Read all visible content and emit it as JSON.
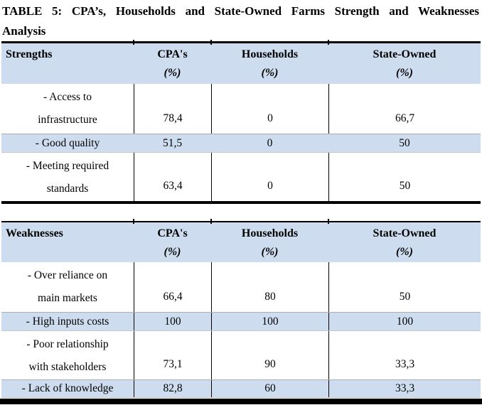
{
  "title": {
    "line1": "TABLE 5: CPA’s, Households and State-Owned Farms Strength and Weaknesses",
    "line2": "Analysis"
  },
  "colors": {
    "band_blue": "#cdddef",
    "grid_gray": "#adadad",
    "rule_black": "#000000"
  },
  "tables": [
    {
      "name": "Strengths",
      "columns": [
        "Strengths",
        "CPA's",
        "Households",
        "State-Owned"
      ],
      "unit": "(%)",
      "rows": [
        {
          "label_lines": [
            "- Access to",
            "infrastructure"
          ],
          "values": [
            "78,4",
            "0",
            "66,7"
          ],
          "highlight": false,
          "col_borders": true
        },
        {
          "label_lines": [
            "- Good quality"
          ],
          "values": [
            "51,5",
            "0",
            "50"
          ],
          "highlight": true,
          "col_borders": false
        },
        {
          "label_lines": [
            "- Meeting required",
            "standards"
          ],
          "values": [
            "63,4",
            "0",
            "50"
          ],
          "highlight": false,
          "col_borders": true
        }
      ]
    },
    {
      "name": "Weaknesses",
      "columns": [
        "Weaknesses",
        "CPA's",
        "Households",
        "State-Owned"
      ],
      "unit": "(%)",
      "rows": [
        {
          "label_lines": [
            "- Over reliance on",
            "main markets"
          ],
          "values": [
            "66,4",
            "80",
            "50"
          ],
          "highlight": false,
          "col_borders": true
        },
        {
          "label_lines": [
            "- High inputs costs"
          ],
          "values": [
            "100",
            "100",
            "100"
          ],
          "highlight": true,
          "col_borders": true
        },
        {
          "label_lines": [
            "- Poor relationship",
            "with stakeholders"
          ],
          "values": [
            "73,1",
            "90",
            "33,3"
          ],
          "highlight": false,
          "col_borders": true
        },
        {
          "label_lines": [
            "- Lack of knowledge"
          ],
          "values": [
            "82,8",
            "60",
            "33,3"
          ],
          "highlight": true,
          "col_borders": true
        }
      ]
    }
  ]
}
